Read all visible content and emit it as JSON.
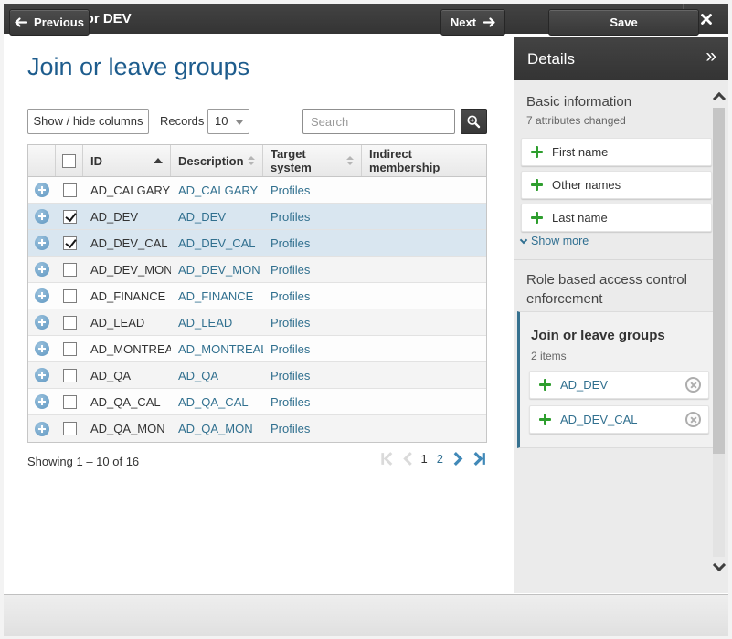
{
  "title_bar": {
    "title": "New hire for DEV"
  },
  "main": {
    "heading": "Join or leave groups",
    "toolbar": {
      "show_hide_columns": "Show / hide columns",
      "records_label": "Records",
      "records_value": "10",
      "search_placeholder": "Search"
    },
    "table": {
      "columns": [
        "ID",
        "Description",
        "Target system",
        "Indirect membership"
      ],
      "sort": {
        "column": "ID",
        "direction": "ascending"
      },
      "rows": [
        {
          "id": "AD_CALGARY",
          "description": "AD_CALGARY",
          "target_system": "Profiles",
          "checked": false,
          "selected": false
        },
        {
          "id": "AD_DEV",
          "description": "AD_DEV",
          "target_system": "Profiles",
          "checked": true,
          "selected": true
        },
        {
          "id": "AD_DEV_CAL",
          "description": "AD_DEV_CAL",
          "target_system": "Profiles",
          "checked": true,
          "selected": true
        },
        {
          "id": "AD_DEV_MON",
          "description": "AD_DEV_MON",
          "target_system": "Profiles",
          "checked": false,
          "selected": false
        },
        {
          "id": "AD_FINANCE",
          "description": "AD_FINANCE",
          "target_system": "Profiles",
          "checked": false,
          "selected": false
        },
        {
          "id": "AD_LEAD",
          "description": "AD_LEAD",
          "target_system": "Profiles",
          "checked": false,
          "selected": false
        },
        {
          "id": "AD_MONTREAL",
          "description": "AD_MONTREAL",
          "target_system": "Profiles",
          "checked": false,
          "selected": false
        },
        {
          "id": "AD_QA",
          "description": "AD_QA",
          "target_system": "Profiles",
          "checked": false,
          "selected": false
        },
        {
          "id": "AD_QA_CAL",
          "description": "AD_QA_CAL",
          "target_system": "Profiles",
          "checked": false,
          "selected": false
        },
        {
          "id": "AD_QA_MON",
          "description": "AD_QA_MON",
          "target_system": "Profiles",
          "checked": false,
          "selected": false
        }
      ]
    },
    "summary": "Showing 1 – 10 of 16",
    "pagination": {
      "pages": [
        "1",
        "2"
      ],
      "current": "1"
    }
  },
  "details": {
    "header": "Details",
    "basic": {
      "title": "Basic information",
      "subtitle": "7 attributes changed",
      "items": [
        "First name",
        "Other names",
        "Last name"
      ],
      "show_more": "Show more"
    },
    "rbac": {
      "title": "Role based access control enforcement",
      "group_box": {
        "title": "Join or leave groups",
        "count": "2 items",
        "items": [
          "AD_DEV",
          "AD_DEV_CAL"
        ]
      }
    }
  },
  "footer": {
    "previous": "Previous",
    "next": "Next",
    "save": "Save"
  },
  "colors": {
    "dark_bar": "#3a3a3a",
    "heading_blue": "#1d5c8d",
    "link_blue": "#31708f",
    "selected_row": "#d9e6f0",
    "green_plus": "#2e9e2e",
    "panel_gray": "#ebebeb",
    "group_box_accent": "#36718f"
  }
}
